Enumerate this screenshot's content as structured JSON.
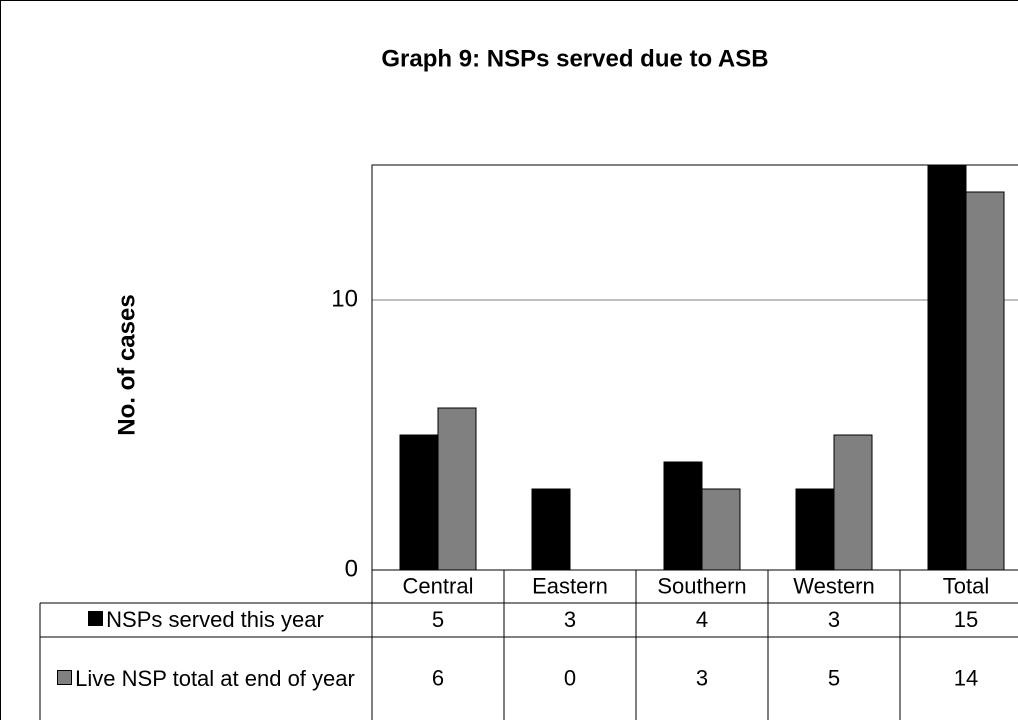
{
  "chart_data": {
    "type": "bar",
    "title": "Graph 9: NSPs served due to ASB",
    "y_label": "No. of cases",
    "categories": [
      "Central",
      "Eastern",
      "Southern",
      "Western",
      "Total"
    ],
    "series": [
      {
        "name": "NSPs served this year",
        "color": "#000000",
        "values": [
          5,
          3,
          4,
          3,
          15
        ]
      },
      {
        "name": "Live NSP total at end of year",
        "color": "#808080",
        "values": [
          6,
          0,
          3,
          5,
          14
        ]
      }
    ],
    "ylim": [
      0,
      15
    ],
    "yticks": [
      0,
      10
    ],
    "grid": true,
    "data_table": true
  }
}
